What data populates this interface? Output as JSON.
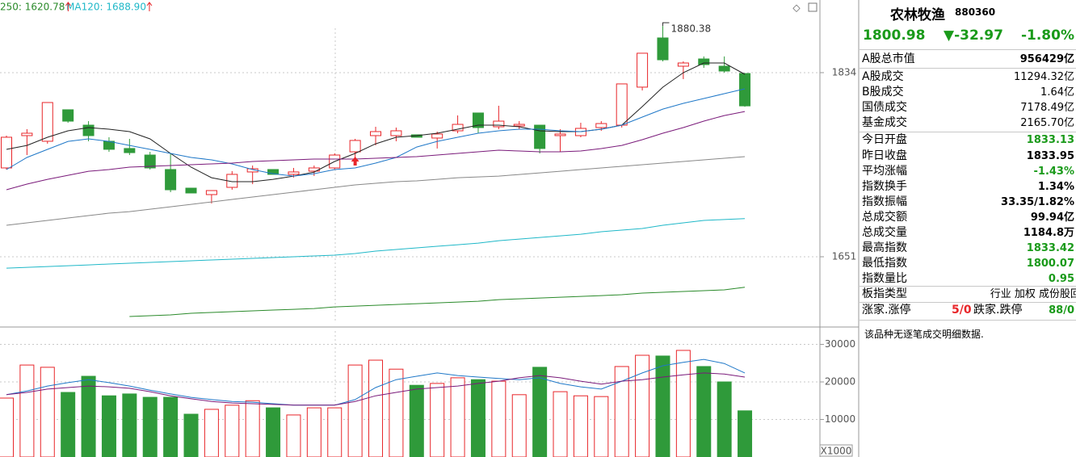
{
  "chart_data": [
    {
      "type": "candlestick",
      "open": [
        1739.3,
        1771.4,
        1765.8,
        1797.1,
        1781.8,
        1765.8,
        1758.6,
        1752.1,
        1737.7,
        1719.2,
        1712.8,
        1720.0,
        1735.3,
        1737.7,
        1732.9,
        1736.1,
        1739.3,
        1755.3,
        1771.4,
        1771.4,
        1772.2,
        1769.0,
        1776.2,
        1793.9,
        1780.2,
        1781.0,
        1781.8,
        1771.4,
        1771.4,
        1779.4,
        1781.8,
        1819.6,
        1868.5,
        1840.4,
        1847.6,
        1840.4,
        1833.13
      ],
      "close": [
        1769.8,
        1773.8,
        1804.3,
        1785.8,
        1771.4,
        1757.8,
        1754.5,
        1739.3,
        1717.6,
        1714.4,
        1716.8,
        1732.9,
        1738.5,
        1732.9,
        1735.3,
        1739.3,
        1752.1,
        1766.6,
        1775.4,
        1776.2,
        1769.8,
        1773.0,
        1782.6,
        1779.4,
        1785.8,
        1782.6,
        1758.6,
        1773.0,
        1778.6,
        1783.4,
        1822.8,
        1853.3,
        1846.8,
        1843.6,
        1842.0,
        1835.6,
        1800.98
      ],
      "high": [
        1771.4,
        1777.8,
        1804.3,
        1797.1,
        1785.8,
        1769.8,
        1768.2,
        1755.3,
        1753.7,
        1719.2,
        1716.8,
        1736.1,
        1741.7,
        1737.7,
        1739.3,
        1741.7,
        1753.7,
        1768.2,
        1780.2,
        1779.4,
        1772.2,
        1775.4,
        1791.5,
        1793.9,
        1801.1,
        1785.8,
        1781.8,
        1777.8,
        1784.2,
        1785.8,
        1822.8,
        1853.3,
        1880.38,
        1845.2,
        1850.1,
        1850.1,
        1833.42
      ],
      "low": [
        1737.7,
        1752.1,
        1763.4,
        1784.2,
        1765.8,
        1755.3,
        1752.1,
        1737.7,
        1715.2,
        1714.4,
        1704.0,
        1717.6,
        1723.2,
        1732.9,
        1729.7,
        1731.3,
        1737.7,
        1741.7,
        1761.8,
        1765.8,
        1769.8,
        1758.6,
        1773.8,
        1773.8,
        1777.8,
        1777.8,
        1753.7,
        1755.3,
        1769.8,
        1776.2,
        1779.4,
        1816.3,
        1845.2,
        1827.6,
        1838.8,
        1834.0,
        1800.07
      ],
      "up_color": "#e8262a",
      "down_color": "#2f9a3a",
      "lines": [
        {
          "color": "#222222",
          "values": [
            1757.7,
            1761.7,
            1769.8,
            1776.2,
            1779.4,
            1777.8,
            1775.4,
            1768.2,
            1753.7,
            1740.1,
            1729.6,
            1725.6,
            1725.6,
            1728.0,
            1731.2,
            1735.2,
            1745.7,
            1753.7,
            1763.3,
            1769.8,
            1771.4,
            1773.8,
            1777.8,
            1781.8,
            1781.8,
            1780.2,
            1776.2,
            1775.4,
            1775.4,
            1777.8,
            1781.8,
            1800.3,
            1819.5,
            1834.0,
            1843.6,
            1843.6,
            1832.4
          ]
        },
        {
          "color": "#1f78c8",
          "values": [
            1737.7,
            1749.7,
            1757.7,
            1765.7,
            1768.2,
            1765.7,
            1761.7,
            1757.7,
            1753.7,
            1749.7,
            1747.3,
            1743.3,
            1737.7,
            1733.6,
            1731.2,
            1733.6,
            1737.7,
            1739.3,
            1744.1,
            1749.7,
            1760.1,
            1765.7,
            1769.8,
            1773.8,
            1776.2,
            1777.8,
            1777.8,
            1776.2,
            1775.4,
            1777.8,
            1781.8,
            1789.8,
            1797.8,
            1803.5,
            1808.3,
            1813.1,
            1817.9
          ]
        },
        {
          "color": "#7a1a7a",
          "values": [
            1717.6,
            1723.2,
            1728.0,
            1732.0,
            1736.0,
            1737.7,
            1740.1,
            1740.9,
            1741.7,
            1742.5,
            1743.3,
            1744.1,
            1745.7,
            1746.5,
            1747.3,
            1748.1,
            1748.1,
            1748.1,
            1748.9,
            1749.7,
            1750.5,
            1752.1,
            1753.7,
            1755.3,
            1756.9,
            1756.1,
            1755.3,
            1755.3,
            1756.1,
            1758.5,
            1761.7,
            1767.4,
            1773.8,
            1779.4,
            1785.8,
            1791.4,
            1795.4
          ]
        },
        {
          "color": "#888888",
          "values": [
            1682.3,
            1684.7,
            1687.1,
            1689.5,
            1691.9,
            1694.3,
            1695.9,
            1698.3,
            1700.7,
            1703.1,
            1705.5,
            1708.0,
            1710.4,
            1712.8,
            1715.2,
            1717.6,
            1720.0,
            1722.4,
            1724.0,
            1725.6,
            1726.4,
            1728.0,
            1729.6,
            1730.4,
            1731.2,
            1732.8,
            1734.4,
            1736.0,
            1737.7,
            1739.3,
            1740.9,
            1742.5,
            1744.1,
            1745.7,
            1747.3,
            1748.9,
            1750.5
          ]
        },
        {
          "color": "#1fb8c8",
          "values": [
            1639.7,
            1640.5,
            1641.3,
            1642.1,
            1642.9,
            1643.8,
            1644.6,
            1645.4,
            1646.2,
            1647.0,
            1647.8,
            1648.6,
            1649.4,
            1650.2,
            1651.0,
            1651.8,
            1652.6,
            1654.2,
            1656.6,
            1658.2,
            1659.8,
            1661.4,
            1663.0,
            1664.6,
            1667.0,
            1668.6,
            1670.2,
            1671.8,
            1673.4,
            1675.9,
            1677.5,
            1679.1,
            1682.3,
            1684.7,
            1687.1,
            1688.0,
            1688.9
          ]
        },
        {
          "color": "#2a8a2a",
          "values": [
            null,
            null,
            null,
            null,
            null,
            null,
            1591.6,
            1592.4,
            1593.2,
            1594.8,
            1595.6,
            1596.4,
            1597.2,
            1598.0,
            1598.8,
            1599.6,
            1601.2,
            1602.0,
            1602.8,
            1603.6,
            1604.4,
            1605.2,
            1606.0,
            1606.8,
            1608.4,
            1609.2,
            1610.0,
            1610.8,
            1611.6,
            1612.4,
            1613.3,
            1614.9,
            1615.7,
            1616.5,
            1617.3,
            1618.1,
            1620.78
          ]
        }
      ],
      "legend": [
        {
          "label": "250: 1620.78",
          "color": "#2a8a2a"
        },
        {
          "label": "MA120: 1688.90",
          "color": "#1fb8c8"
        }
      ],
      "ylim": [
        1585.2,
        1906.2
      ],
      "yticks": [
        1651,
        1834
      ],
      "grid": true
    },
    {
      "type": "volume",
      "values": [
        15700,
        24500,
        23900,
        17200,
        21500,
        16300,
        16800,
        15900,
        15900,
        11400,
        12700,
        13800,
        15000,
        13100,
        11200,
        13100,
        13100,
        24500,
        25800,
        23400,
        19100,
        19600,
        21100,
        20600,
        20200,
        16600,
        23900,
        17400,
        16300,
        16100,
        24100,
        27100,
        26900,
        28400,
        24100,
        20000,
        12300
      ],
      "lines": [
        {
          "color": "#1f78c8",
          "values": [
            16600,
            17600,
            18900,
            19800,
            20600,
            19800,
            18900,
            17800,
            16800,
            15900,
            15300,
            14800,
            14600,
            14200,
            13800,
            13800,
            13800,
            15300,
            18500,
            20600,
            21500,
            22400,
            21700,
            21300,
            20900,
            20600,
            21100,
            19600,
            18700,
            18100,
            20200,
            22400,
            24300,
            25200,
            26000,
            24900,
            22400
          ]
        },
        {
          "color": "#7a1a7a",
          "values": [
            16600,
            17200,
            18100,
            18500,
            18900,
            18700,
            18300,
            17400,
            16300,
            15500,
            14800,
            14400,
            14200,
            14000,
            13800,
            13800,
            13800,
            14800,
            16300,
            17200,
            18100,
            18500,
            18900,
            19600,
            20200,
            21100,
            21700,
            21100,
            20200,
            19400,
            20200,
            20600,
            21300,
            21900,
            22400,
            22100,
            21300
          ]
        }
      ],
      "ylim": [
        0,
        34200
      ],
      "yticks": [
        10000,
        20000,
        30000
      ],
      "unit_label": "X1000",
      "grid": true
    }
  ],
  "panel": {
    "title": "农林牧渔",
    "code": "880360",
    "quote": [
      "1800.98",
      "▼-32.97",
      "-1.80%"
    ],
    "rows": [
      [
        "A股总市值",
        "956429亿"
      ],
      [
        "A股成交",
        "11294.32亿"
      ],
      [
        "B股成交",
        "1.64亿"
      ],
      [
        "国债成交",
        "7178.49亿"
      ],
      [
        "基金成交",
        "2165.70亿"
      ],
      [
        "今日开盘",
        "1833.13"
      ],
      [
        "昨日收盘",
        "1833.95"
      ],
      [
        "平均涨幅",
        "-1.43%"
      ],
      [
        "指数换手",
        "1.34%"
      ],
      [
        "指数振幅",
        "33.35/1.82%"
      ],
      [
        "总成交额",
        "99.94亿"
      ],
      [
        "总成交量",
        "1184.8万"
      ],
      [
        "最高指数",
        "1833.42"
      ],
      [
        "最低指数",
        "1800.07"
      ],
      [
        "指数量比",
        "0.95"
      ],
      [
        "板指类型",
        "行业 加权 成份股回"
      ]
    ],
    "updown": [
      "涨家.涨停",
      "5/0",
      "跌家.跌停",
      "88/0"
    ],
    "note": "该品种无逐笔成交明细数据."
  }
}
